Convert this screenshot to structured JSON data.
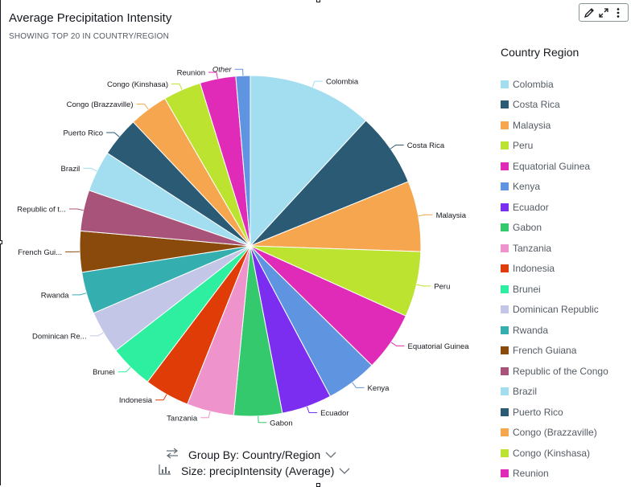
{
  "visual": {
    "title": "Average Precipitation Intensity",
    "subtitle": "SHOWING TOP 20 IN COUNTRY/REGION"
  },
  "toolbar": {
    "icons": [
      "pencil-icon",
      "expand-icon",
      "more-vertical-icon"
    ]
  },
  "legend": {
    "title": "Country Region"
  },
  "controls": {
    "group_by": "Group By: Country/Region",
    "size": "Size: precipIntensity (Average)"
  },
  "chart_data": {
    "type": "pie",
    "legend_placement": "right",
    "categories": [
      "Colombia",
      "Costa Rica",
      "Malaysia",
      "Peru",
      "Equatorial Guinea",
      "Kenya",
      "Ecuador",
      "Gabon",
      "Tanzania",
      "Indonesia",
      "Brunei",
      "Dominican Republic",
      "Rwanda",
      "French Guiana",
      "Republic of the Congo",
      "Brazil",
      "Puerto Rico",
      "Congo (Brazzaville)",
      "Congo (Kinshasa)",
      "Reunion",
      "Other"
    ],
    "slice_labels": [
      "Colombia",
      "Costa Rica",
      "Malaysia",
      "Peru",
      "Equatorial Guinea",
      "Kenya",
      "Ecuador",
      "Gabon",
      "Tanzania",
      "Indonesia",
      "Brunei",
      "Dominican Re...",
      "Rwanda",
      "French Gui...",
      "Republic of t...",
      "Brazil",
      "Puerto Rico",
      "Congo (Brazzaville)",
      "Congo (Kinshasa)",
      "Reunion",
      "Other"
    ],
    "values": [
      12.2,
      7.2,
      6.9,
      6.4,
      5.8,
      5.0,
      4.9,
      4.7,
      4.6,
      4.4,
      4.3,
      4.2,
      4.1,
      4.0,
      4.0,
      4.0,
      3.9,
      3.8,
      3.7,
      3.5,
      1.4
    ],
    "colors": [
      "#a2ddf0",
      "#2b5a74",
      "#f6a64e",
      "#bce32f",
      "#e02bb8",
      "#5f94e0",
      "#7b2df0",
      "#35c96e",
      "#ef93cc",
      "#e03c07",
      "#2eefa0",
      "#c4c6e8",
      "#35aeb0",
      "#8a4a0b",
      "#a8547a",
      "#a2ddf0",
      "#2b5a74",
      "#f6a64e",
      "#bce32f",
      "#e02bb8",
      "#5f94e0"
    ]
  }
}
